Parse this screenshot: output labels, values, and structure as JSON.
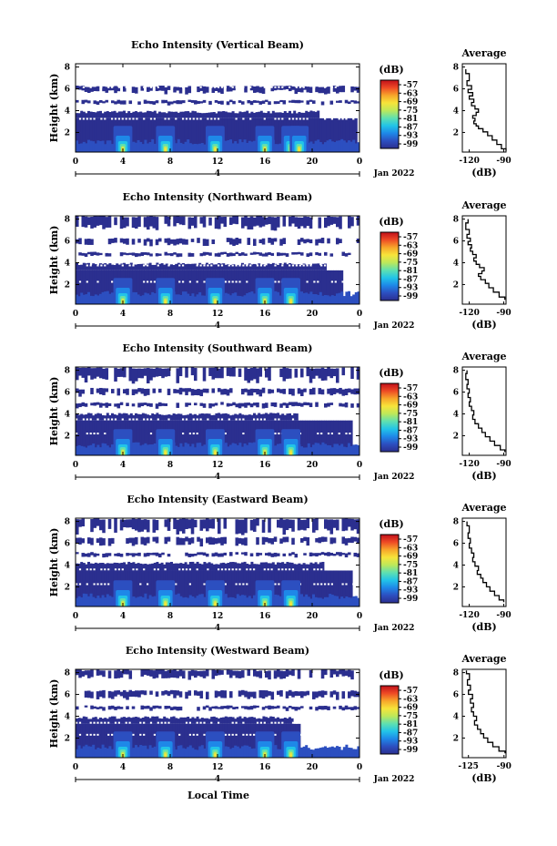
{
  "colorbar_unit": "(dB)",
  "colorbar_ticks": [
    "-57",
    "-63",
    "-69",
    "-75",
    "-81",
    "-87",
    "-93",
    "-99"
  ],
  "date_label": "Jan 2022",
  "day_label": "4",
  "x_title": "Local Time",
  "avg_title": "Average",
  "avg_xlabel": "(dB)",
  "colors": {
    "colormap": [
      "#2b2f8f",
      "#2c4fc0",
      "#1e88e8",
      "#22c4e8",
      "#5fe0b0",
      "#bde85a",
      "#f7e43a",
      "#f7a52a",
      "#ee4a25",
      "#c0101a"
    ]
  },
  "chart_data": [
    {
      "type": "heatmap",
      "title": "Echo Intensity (Vertical Beam)",
      "ylabel": "Height (km)",
      "xlabel": "Local Time",
      "x_ticks": [
        "0",
        "4",
        "8",
        "12",
        "16",
        "20",
        "0"
      ],
      "y_ticks": [
        "2",
        "4",
        "6",
        "8"
      ],
      "xlim": [
        0,
        24
      ],
      "ylim": [
        0.2,
        8.3
      ],
      "value_range_db": [
        -99,
        -57
      ],
      "layers_km": [
        {
          "base": 0.2,
          "top": 3.3,
          "level": "low",
          "gaps": [
            [
              23.6,
              24
            ]
          ]
        },
        {
          "base": 3.3,
          "top": 4.0,
          "level": "weak",
          "gaps": [
            [
              20.5,
              24
            ]
          ]
        },
        {
          "base": 4.6,
          "top": 5.0,
          "level": "sparse"
        },
        {
          "base": 5.6,
          "top": 6.3,
          "level": "sparse"
        }
      ],
      "hotspots_h": [
        4,
        7.6,
        11.8,
        16,
        18.2,
        18.9
      ],
      "gap_lines_km": [
        3.25,
        4.15,
        5.25,
        6.15
      ]
    },
    {
      "type": "heatmap",
      "title": "Echo Intensity (Northward Beam)",
      "ylabel": "Height (km)",
      "xlabel": "Local Time",
      "x_ticks": [
        "0",
        "4",
        "8",
        "12",
        "16",
        "20",
        "0"
      ],
      "y_ticks": [
        "2",
        "4",
        "6",
        "8"
      ],
      "xlim": [
        0,
        24
      ],
      "ylim": [
        0.2,
        8.3
      ],
      "value_range_db": [
        -99,
        -57
      ],
      "layers_km": [
        {
          "base": 0.2,
          "top": 3.3,
          "level": "low",
          "gaps": [
            [
              22.5,
              24
            ]
          ]
        },
        {
          "base": 3.3,
          "top": 4.0,
          "level": "weak",
          "gaps": [
            [
              21,
              24
            ]
          ]
        },
        {
          "base": 4.6,
          "top": 5.0,
          "level": "sparse"
        },
        {
          "base": 5.6,
          "top": 6.3,
          "level": "sparse"
        },
        {
          "base": 7.0,
          "top": 8.3,
          "level": "sparse"
        }
      ],
      "hotspots_h": [
        4,
        7.6,
        11.8,
        16,
        18.2
      ],
      "gap_lines_km": [
        2.25,
        3.75,
        4.25,
        5.25,
        6.5
      ]
    },
    {
      "type": "heatmap",
      "title": "Echo Intensity (Southward Beam)",
      "ylabel": "Height (km)",
      "xlabel": "Local Time",
      "x_ticks": [
        "0",
        "4",
        "8",
        "12",
        "16",
        "20",
        "0"
      ],
      "y_ticks": [
        "2",
        "4",
        "6",
        "8"
      ],
      "xlim": [
        0,
        24
      ],
      "ylim": [
        0.2,
        8.3
      ],
      "value_range_db": [
        -99,
        -57
      ],
      "layers_km": [
        {
          "base": 0.2,
          "top": 3.4,
          "level": "low",
          "gaps": [
            [
              23.2,
              24
            ]
          ]
        },
        {
          "base": 3.4,
          "top": 4.1,
          "level": "weak",
          "gaps": [
            [
              18.6,
              24
            ]
          ]
        },
        {
          "base": 4.6,
          "top": 5.1,
          "level": "sparse"
        },
        {
          "base": 5.7,
          "top": 6.4,
          "level": "sparse"
        },
        {
          "base": 6.8,
          "top": 8.3,
          "level": "sparse"
        }
      ],
      "hotspots_h": [
        4,
        7.6,
        11.8,
        16,
        18.2
      ],
      "gap_lines_km": [
        2.2,
        3.5,
        4.4,
        5.5
      ]
    },
    {
      "type": "heatmap",
      "title": "Echo Intensity (Eastward Beam)",
      "ylabel": "Height (km)",
      "xlabel": "Local Time",
      "x_ticks": [
        "0",
        "4",
        "8",
        "12",
        "16",
        "20",
        "0"
      ],
      "y_ticks": [
        "2",
        "4",
        "6",
        "8"
      ],
      "xlim": [
        0,
        24
      ],
      "ylim": [
        0.2,
        8.3
      ],
      "value_range_db": [
        -99,
        -57
      ],
      "layers_km": [
        {
          "base": 0.2,
          "top": 3.5,
          "level": "low",
          "gaps": [
            [
              23.2,
              24
            ]
          ]
        },
        {
          "base": 3.5,
          "top": 4.3,
          "level": "weak",
          "gaps": [
            [
              20.8,
              24
            ]
          ]
        },
        {
          "base": 4.8,
          "top": 5.2,
          "level": "sparse"
        },
        {
          "base": 5.8,
          "top": 6.6,
          "level": "sparse"
        },
        {
          "base": 6.8,
          "top": 8.3,
          "level": "sparse"
        }
      ],
      "hotspots_h": [
        4,
        7.6,
        11.8,
        16,
        18.2
      ],
      "gap_lines_km": [
        2.25,
        3.6,
        4.6,
        5.5
      ]
    },
    {
      "type": "heatmap",
      "title": "Echo Intensity (Westward Beam)",
      "ylabel": "Height (km)",
      "xlabel": "Local Time",
      "x_ticks": [
        "0",
        "4",
        "8",
        "12",
        "16",
        "20",
        "0"
      ],
      "y_ticks": [
        "2",
        "4",
        "6",
        "8"
      ],
      "xlim": [
        0,
        24
      ],
      "ylim": [
        0.2,
        8.3
      ],
      "value_range_db": [
        -99,
        -57
      ],
      "layers_km": [
        {
          "base": 0.2,
          "top": 3.3,
          "level": "low",
          "gaps": [
            [
              18.8,
              24
            ]
          ]
        },
        {
          "base": 3.3,
          "top": 4.0,
          "level": "weak",
          "gaps": [
            [
              18.2,
              24
            ]
          ]
        },
        {
          "base": 4.6,
          "top": 5.0,
          "level": "sparse"
        },
        {
          "base": 5.6,
          "top": 6.4,
          "level": "sparse"
        },
        {
          "base": 7.4,
          "top": 8.3,
          "level": "sparse"
        }
      ],
      "hotspots_h": [
        4,
        7.6,
        11.8,
        16,
        18.2
      ],
      "gap_lines_km": [
        2.3,
        3.4,
        4.3,
        5.3
      ]
    },
    {
      "type": "line",
      "title": "Average",
      "xlabel": "(dB)",
      "x_ticks": [
        "-120",
        "-90"
      ],
      "y_ticks": [
        "2",
        "4",
        "6",
        "8"
      ],
      "xlim": [
        -126,
        -88
      ],
      "ylim": [
        0.2,
        8.3
      ],
      "x": [
        -88,
        -92,
        -96,
        -100,
        -104,
        -108,
        -112,
        -114,
        -116,
        -115,
        -117,
        -114,
        -112,
        -115,
        -118,
        -116,
        -120,
        -117,
        -121,
        -118,
        -122,
        -120,
        -123
      ],
      "y": [
        0.3,
        0.7,
        1.1,
        1.5,
        1.9,
        2.2,
        2.5,
        2.7,
        2.9,
        3.2,
        3.4,
        3.7,
        4.0,
        4.3,
        4.6,
        4.9,
        5.2,
        5.5,
        5.8,
        6.1,
        6.5,
        7.0,
        7.8
      ]
    },
    {
      "type": "line",
      "title": "Average",
      "xlabel": "(dB)",
      "x_ticks": [
        "-120",
        "-90"
      ],
      "y_ticks": [
        "2",
        "4",
        "6",
        "8"
      ],
      "xlim": [
        -126,
        -88
      ],
      "ylim": [
        0.2,
        8.3
      ],
      "x": [
        -89,
        -94,
        -99,
        -103,
        -106,
        -110,
        -112,
        -109,
        -107,
        -111,
        -114,
        -116,
        -114,
        -117,
        -119,
        -118,
        -121,
        -119,
        -122,
        -120,
        -123,
        -121
      ],
      "y": [
        0.6,
        1.1,
        1.5,
        1.9,
        2.3,
        2.6,
        2.9,
        3.1,
        3.4,
        3.7,
        4.0,
        4.3,
        4.6,
        4.9,
        5.2,
        5.5,
        5.8,
        6.1,
        6.4,
        6.8,
        7.3,
        8.0
      ]
    },
    {
      "type": "line",
      "title": "Average",
      "xlabel": "(dB)",
      "x_ticks": [
        "-120",
        "-90"
      ],
      "y_ticks": [
        "2",
        "4",
        "6",
        "8"
      ],
      "xlim": [
        -126,
        -88
      ],
      "ylim": [
        0.2,
        8.3
      ],
      "x": [
        -89,
        -93,
        -98,
        -102,
        -106,
        -109,
        -112,
        -115,
        -117,
        -116,
        -118,
        -120,
        -119,
        -121,
        -120,
        -122,
        -121,
        -123,
        -122
      ],
      "y": [
        0.5,
        0.9,
        1.3,
        1.7,
        2.1,
        2.5,
        2.9,
        3.3,
        3.7,
        4.1,
        4.5,
        4.9,
        5.3,
        5.7,
        6.1,
        6.5,
        6.9,
        7.4,
        8.0
      ]
    },
    {
      "type": "line",
      "title": "Average",
      "xlabel": "(dB)",
      "x_ticks": [
        "-120",
        "-90"
      ],
      "y_ticks": [
        "2",
        "4",
        "6",
        "8"
      ],
      "xlim": [
        -126,
        -88
      ],
      "ylim": [
        0.2,
        8.3
      ],
      "x": [
        -90,
        -94,
        -98,
        -102,
        -105,
        -108,
        -110,
        -113,
        -112,
        -115,
        -117,
        -116,
        -118,
        -120,
        -119,
        -121,
        -120,
        -122
      ],
      "y": [
        0.6,
        1.0,
        1.4,
        1.8,
        2.2,
        2.6,
        3.0,
        3.3,
        3.7,
        4.1,
        4.5,
        4.9,
        5.3,
        5.8,
        6.2,
        6.7,
        7.2,
        8.0
      ]
    },
    {
      "type": "line",
      "title": "Average",
      "xlabel": "(dB)",
      "x_ticks": [
        "-125",
        "-90"
      ],
      "y_ticks": [
        "2",
        "4",
        "6",
        "8"
      ],
      "xlim": [
        -131,
        -88
      ],
      "ylim": [
        0.2,
        8.3
      ],
      "x": [
        -89,
        -95,
        -101,
        -106,
        -110,
        -113,
        -116,
        -119,
        -117,
        -120,
        -122,
        -120,
        -123,
        -121,
        -125,
        -123,
        -126,
        -124,
        -127
      ],
      "y": [
        0.6,
        1.0,
        1.4,
        1.8,
        2.2,
        2.6,
        3.0,
        3.4,
        3.8,
        4.2,
        4.6,
        5.0,
        5.4,
        5.8,
        6.2,
        6.6,
        7.1,
        7.6,
        8.2
      ]
    }
  ]
}
